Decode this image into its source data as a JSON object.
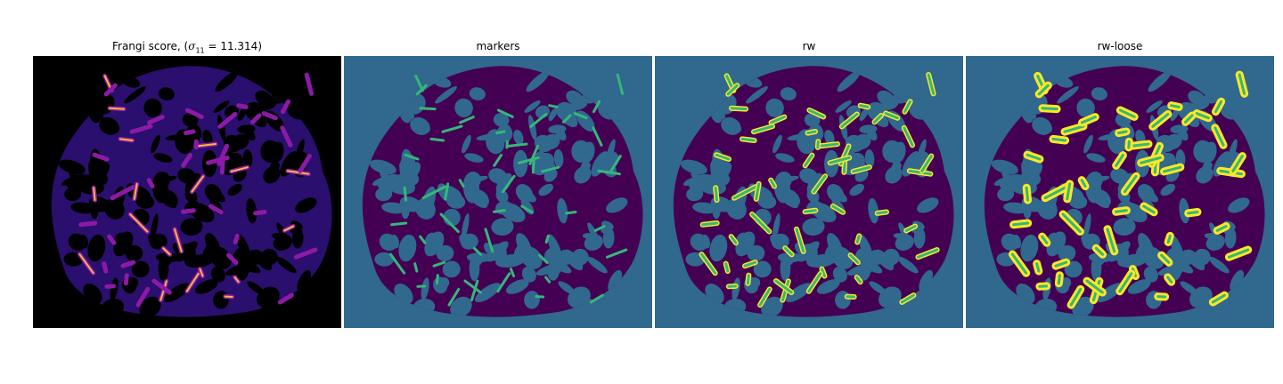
{
  "panels": [
    {
      "id": "frangi",
      "title_prefix": "Frangi score, (",
      "sigma_symbol": "σ",
      "sigma_sub": "11",
      "sigma_eq": " = ",
      "sigma_value": "11.314",
      "title_suffix": ")"
    },
    {
      "id": "markers",
      "title": "markers"
    },
    {
      "id": "rw",
      "title": "rw"
    },
    {
      "id": "rw-loose",
      "title": "rw-loose"
    }
  ],
  "colors": {
    "background_label": "#31688e",
    "vessel_dark": "#440154",
    "marker_green": "#35b779",
    "segment_yellow": "#fde725",
    "frangi_bg": "#000000",
    "frangi_low": "#2a0f6e",
    "frangi_mid": "#8c1aa6",
    "frangi_high": "#f7b63a"
  }
}
